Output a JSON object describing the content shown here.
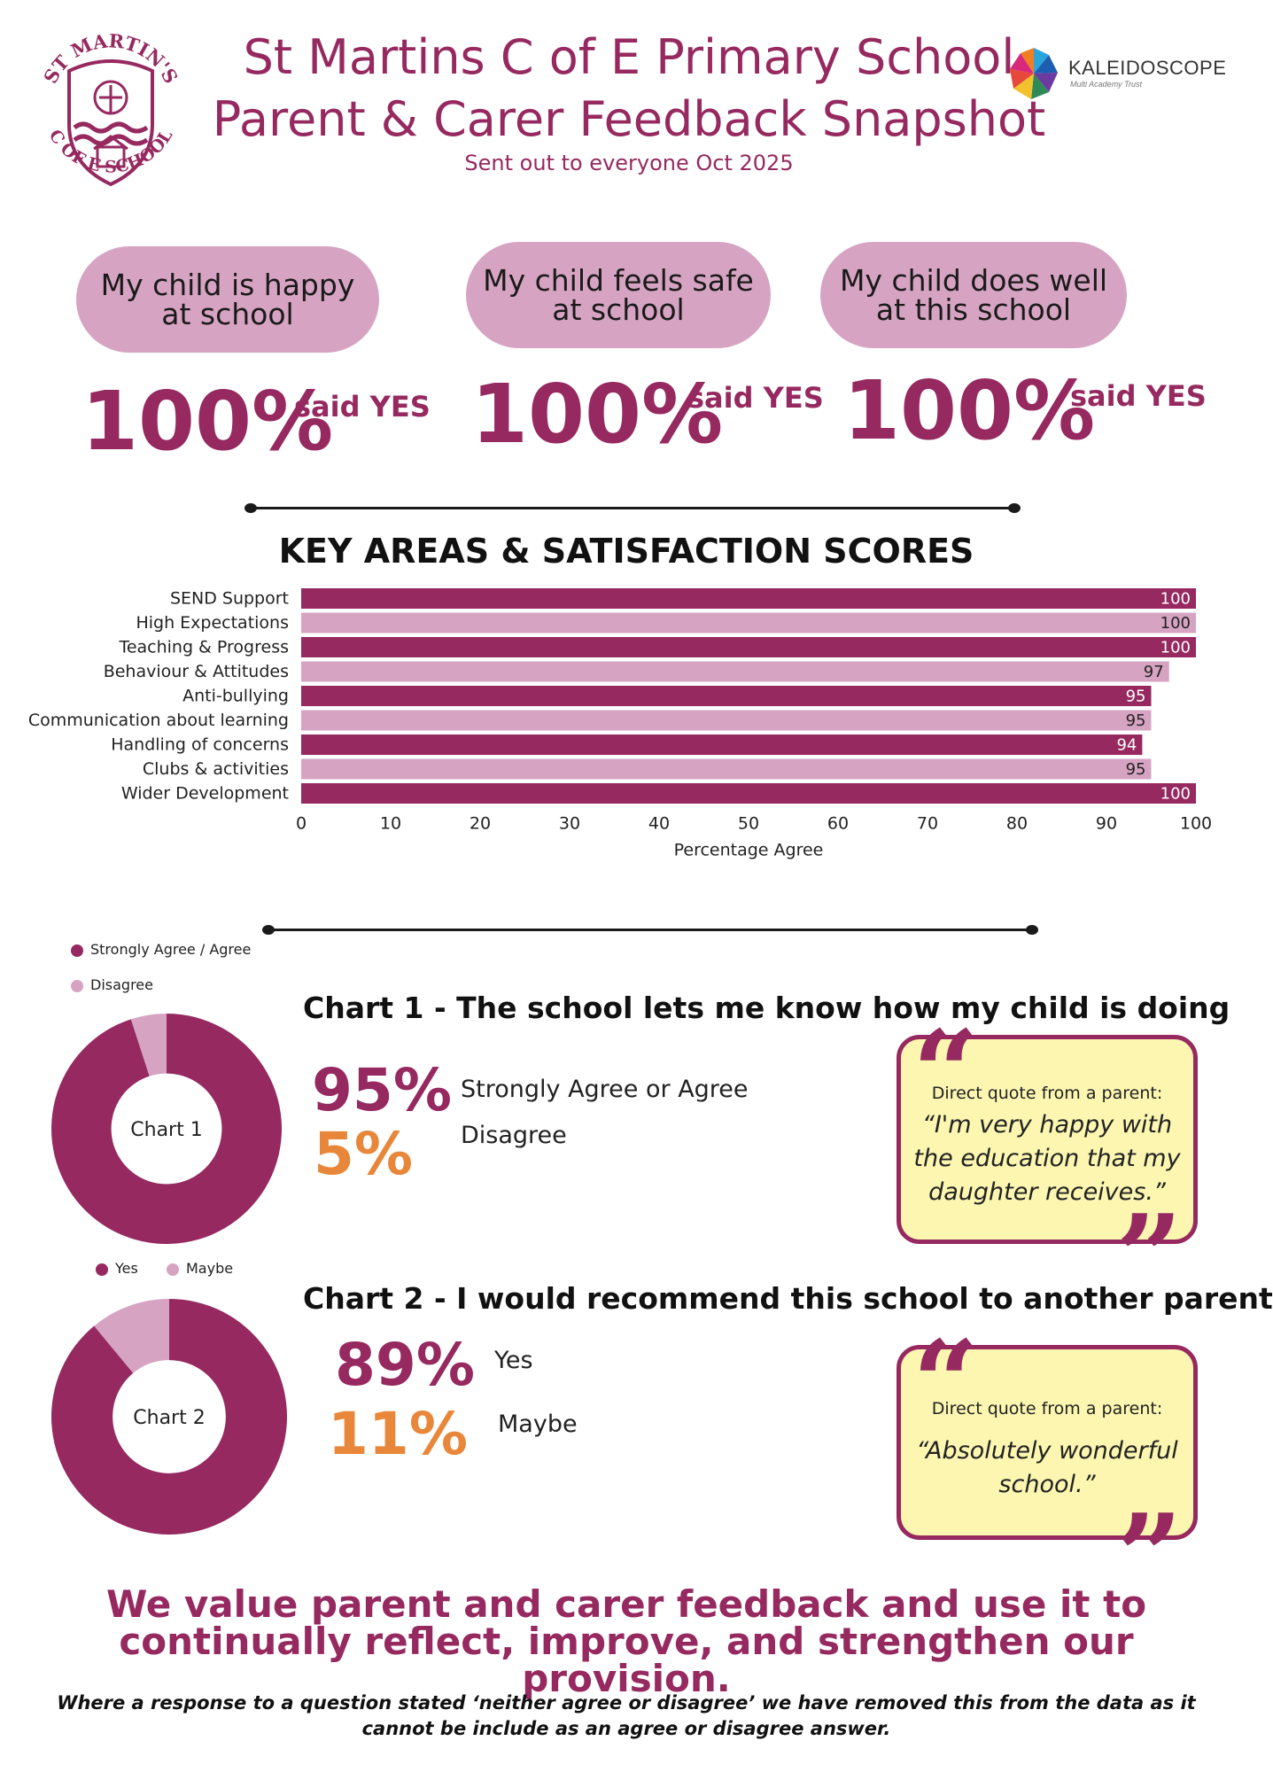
{
  "logo": {
    "top_text": "ST MARTIN'S",
    "bottom_text": "C OF E SCHOOL",
    "color": "#96295f"
  },
  "header": {
    "title_line1": "St Martins C of E Primary School",
    "title_line2": "Parent & Carer Feedback Snapshot",
    "subtitle": "Sent out to everyone Oct 2025",
    "partner_name": "KALEIDOSCOPE",
    "partner_sub": "Multi Academy Trust"
  },
  "colors": {
    "plum": "#96295f",
    "pink": "#d6a4c2",
    "orange": "#e8873a",
    "quote_bg": "#fcf6b1"
  },
  "headline_stats": [
    {
      "question": "My child is happy at school",
      "value": "100%",
      "suffix": "said YES"
    },
    {
      "question": "My child feels safe at school",
      "value": "100%",
      "suffix": "said YES"
    },
    {
      "question": "My child does well at this school",
      "value": "100%",
      "suffix": "said YES"
    }
  ],
  "chart_data": [
    {
      "type": "bar",
      "orientation": "horizontal",
      "title": "KEY AREAS & SATISFACTION SCORES",
      "categories": [
        "SEND Support",
        "High Expectations",
        "Teaching & Progress",
        "Behaviour & Attitudes",
        "Anti-bullying",
        "Communication about learning",
        "Handling of concerns",
        "Clubs & activities",
        "Wider Development"
      ],
      "values": [
        100,
        100,
        100,
        97,
        95,
        95,
        94,
        95,
        100
      ],
      "xlabel": "Percentage Agree",
      "xlim": [
        0,
        100
      ],
      "xticks": [
        0,
        10,
        20,
        30,
        40,
        50,
        60,
        70,
        80,
        90,
        100
      ],
      "bar_colors": [
        "#96295f",
        "#d6a4c2"
      ],
      "grid": false
    },
    {
      "type": "pie",
      "donut": true,
      "title": "Chart 1 - The school lets me know how my child is doing",
      "center_label": "Chart 1",
      "labels": [
        "Strongly Agree / Agree",
        "Disagree"
      ],
      "values": [
        95,
        5
      ],
      "colors": [
        "#96295f",
        "#d6a4c2"
      ],
      "legend": "top-left"
    },
    {
      "type": "pie",
      "donut": true,
      "title": "Chart 2 - I would recommend this school to another parent",
      "center_label": "Chart 2",
      "labels": [
        "Yes",
        "Maybe"
      ],
      "values": [
        89,
        11
      ],
      "colors": [
        "#96295f",
        "#d6a4c2"
      ],
      "legend": "top"
    }
  ],
  "chart1_summary": {
    "agree_pct": "95%",
    "agree_label": "Strongly Agree or Agree",
    "disagree_pct": "5%",
    "disagree_label": "Disagree"
  },
  "chart2_summary": {
    "yes_pct": "89%",
    "yes_label": "Yes",
    "maybe_pct": "11%",
    "maybe_label": "Maybe"
  },
  "quotes": [
    {
      "intro": "Direct quote from a parent:",
      "text": "“I'm very happy with the education that my daughter receives.”"
    },
    {
      "intro": "Direct quote from a parent:",
      "text": "“Absolutely wonderful school.”"
    }
  ],
  "closing": "We value parent and carer feedback and use it to continually reflect, improve, and strengthen our provision.",
  "footnote": "Where a response to a question stated ‘neither agree or disagree’ we have removed this from the data as it cannot be include as an agree or disagree answer."
}
